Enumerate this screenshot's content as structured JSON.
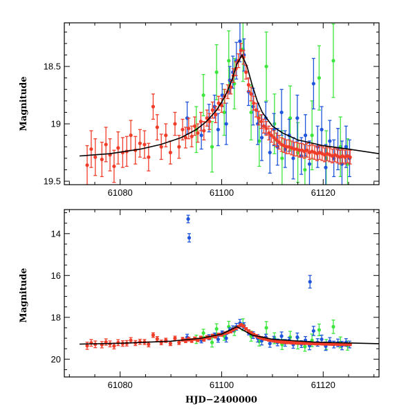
{
  "colors": {
    "red": "#f03c28",
    "blue": "#1e55dc",
    "green": "#3ce63c",
    "curve": "#000000",
    "frame": "#000000"
  },
  "chart_data": [
    {
      "type": "scatter",
      "panel": "top",
      "title": "",
      "xlabel": "",
      "ylabel": "Magnitude",
      "xlim": [
        61069,
        61131
      ],
      "ylim": [
        19.53,
        18.12
      ],
      "y_inverted": true,
      "x_ticks": [
        61080,
        61100,
        61120
      ],
      "y_ticks": [
        18.5,
        19,
        19.5
      ],
      "y_tick_labels": [
        "18.5",
        "19",
        "19.5"
      ],
      "x_tick_labels": [
        "61080",
        "61100",
        "61120"
      ],
      "model_curve": {
        "name": "model fit",
        "x": [
          61072,
          61078,
          61084,
          61088,
          61092,
          61095,
          61097,
          61099,
          61100,
          61101,
          61102,
          61103,
          61104,
          61105,
          61106,
          61107,
          61108,
          61110,
          61112,
          61115,
          61120,
          61125,
          61131
        ],
        "y": [
          19.28,
          19.26,
          19.22,
          19.18,
          19.12,
          19.05,
          18.98,
          18.88,
          18.81,
          18.73,
          18.62,
          18.48,
          18.4,
          18.5,
          18.66,
          18.8,
          18.9,
          19.02,
          19.08,
          19.14,
          19.19,
          19.22,
          19.26
        ]
      },
      "series": [
        {
          "name": "red",
          "x": [
            61073.5,
            61074.3,
            61075.1,
            61076.4,
            61077.2,
            61078.0,
            61078.8,
            61079.6,
            61080.5,
            61081.3,
            61082.1,
            61083.0,
            61083.9,
            61084.8,
            61085.6,
            61086.5,
            61087.3,
            61088.1,
            61089.0,
            61089.9,
            61090.8,
            61091.6,
            61092.3,
            61092.9,
            61093.5,
            61094.1,
            61094.7,
            61095.3,
            61095.9,
            61096.5,
            61097.1,
            61097.6,
            61098.2,
            61098.8,
            61099.4,
            61100.0,
            61100.6,
            61101.2,
            61101.8,
            61102.3,
            61102.8,
            61103.3,
            61103.8,
            61104.3,
            61104.8,
            61105.3,
            61105.8,
            61106.3,
            61106.8,
            61107.3,
            61107.8,
            61108.3,
            61108.8,
            61109.3,
            61109.8,
            61110.3,
            61110.8,
            61111.3,
            61111.8,
            61112.3,
            61112.8,
            61113.3,
            61113.8,
            61114.3,
            61114.8,
            61115.3,
            61115.8,
            61116.3,
            61116.8,
            61117.3,
            61117.8,
            61118.3,
            61118.8,
            61119.3,
            61119.8,
            61120.3,
            61120.8,
            61121.3,
            61121.8,
            61122.3,
            61122.8,
            61123.3,
            61123.8,
            61124.3,
            61124.8,
            61125.3
          ],
          "y": [
            19.36,
            19.22,
            19.29,
            19.31,
            19.18,
            19.27,
            19.37,
            19.21,
            19.25,
            19.24,
            19.1,
            19.23,
            19.17,
            19.18,
            19.29,
            18.85,
            19.03,
            19.2,
            19.1,
            19.25,
            19.0,
            19.2,
            19.05,
            19.12,
            19.04,
            19.11,
            19.02,
            19.08,
            18.98,
            19.06,
            18.95,
            18.98,
            18.88,
            18.92,
            18.82,
            18.84,
            18.76,
            18.72,
            18.68,
            18.58,
            18.52,
            18.45,
            18.36,
            18.42,
            18.55,
            18.66,
            18.74,
            18.82,
            18.88,
            18.95,
            18.98,
            19.02,
            19.04,
            19.08,
            19.1,
            19.12,
            19.14,
            19.16,
            19.18,
            19.19,
            19.2,
            19.2,
            19.21,
            19.22,
            19.22,
            19.23,
            19.23,
            19.24,
            19.23,
            19.25,
            19.24,
            19.25,
            19.26,
            19.25,
            19.26,
            19.27,
            19.26,
            19.27,
            19.28,
            19.27,
            19.28,
            19.29,
            19.28,
            19.29,
            19.28,
            19.29
          ],
          "err": [
            0.17,
            0.16,
            0.16,
            0.15,
            0.15,
            0.14,
            0.14,
            0.14,
            0.13,
            0.13,
            0.13,
            0.12,
            0.12,
            0.12,
            0.12,
            0.11,
            0.11,
            0.11,
            0.1,
            0.1,
            0.1,
            0.1,
            0.09,
            0.09,
            0.09,
            0.09,
            0.08,
            0.08,
            0.08,
            0.08,
            0.07,
            0.07,
            0.07,
            0.07,
            0.06,
            0.06,
            0.06,
            0.06,
            0.06,
            0.06,
            0.06,
            0.06,
            0.06,
            0.06,
            0.06,
            0.06,
            0.06,
            0.06,
            0.06,
            0.06,
            0.06,
            0.06,
            0.06,
            0.06,
            0.06,
            0.06,
            0.06,
            0.06,
            0.06,
            0.06,
            0.06,
            0.06,
            0.06,
            0.06,
            0.06,
            0.06,
            0.06,
            0.06,
            0.06,
            0.06,
            0.06,
            0.06,
            0.06,
            0.06,
            0.06,
            0.06,
            0.06,
            0.06,
            0.06,
            0.06,
            0.06,
            0.06,
            0.06,
            0.06,
            0.06,
            0.06
          ]
        },
        {
          "name": "blue",
          "x": [
            61093.2,
            61096.0,
            61097.5,
            61098.6,
            61099.3,
            61100.1,
            61100.9,
            61101.6,
            61102.2,
            61102.9,
            61103.6,
            61104.4,
            61105.3,
            61106.2,
            61107.1,
            61107.9,
            61108.7,
            61109.5,
            61110.3,
            61111.0,
            61111.8,
            61112.5,
            61113.3,
            61114.1,
            61114.9,
            61115.7,
            61116.5,
            61117.3,
            61118.1,
            61118.9,
            61119.7,
            61120.5,
            61121.3,
            61122.1,
            61122.9,
            61123.7,
            61124.5,
            61125.2
          ],
          "y": [
            18.95,
            19.1,
            18.95,
            18.85,
            19.05,
            18.75,
            19.0,
            18.62,
            18.55,
            18.45,
            18.28,
            18.4,
            18.72,
            18.85,
            19.0,
            19.12,
            18.95,
            19.25,
            19.05,
            19.2,
            18.9,
            19.22,
            19.1,
            19.3,
            18.95,
            19.28,
            19.1,
            19.35,
            18.65,
            19.2,
            19.05,
            19.38,
            19.15,
            19.3,
            19.22,
            19.35,
            19.2,
            19.3
          ],
          "err": [
            0.14,
            0.12,
            0.12,
            0.1,
            0.14,
            0.1,
            0.18,
            0.12,
            0.14,
            0.16,
            0.18,
            0.14,
            0.12,
            0.16,
            0.18,
            0.2,
            0.14,
            0.18,
            0.14,
            0.16,
            0.2,
            0.16,
            0.14,
            0.18,
            0.2,
            0.16,
            0.18,
            0.2,
            0.22,
            0.18,
            0.2,
            0.2,
            0.18,
            0.16,
            0.18,
            0.2,
            0.18,
            0.16
          ]
        },
        {
          "name": "green",
          "x": [
            61095.0,
            61096.4,
            61098.1,
            61099.0,
            61100.5,
            61101.4,
            61102.5,
            61104.2,
            61105.8,
            61107.4,
            61108.8,
            61110.4,
            61111.9,
            61113.5,
            61115.0,
            61116.4,
            61117.8,
            61119.2,
            61120.6,
            61122.0,
            61123.4,
            61124.8
          ],
          "y": [
            19.05,
            18.75,
            19.2,
            18.55,
            18.9,
            18.45,
            18.65,
            18.35,
            18.9,
            19.15,
            18.5,
            19.0,
            19.3,
            18.95,
            19.25,
            19.4,
            19.1,
            18.6,
            19.3,
            18.45,
            19.2,
            19.35
          ],
          "err": [
            0.2,
            0.18,
            0.22,
            0.24,
            0.2,
            0.26,
            0.22,
            0.28,
            0.24,
            0.22,
            0.3,
            0.26,
            0.24,
            0.28,
            0.26,
            0.22,
            0.3,
            0.28,
            0.24,
            0.32,
            0.26,
            0.22
          ]
        }
      ]
    },
    {
      "type": "scatter",
      "panel": "bottom",
      "title": "",
      "xlabel": "HJD−2400000",
      "ylabel": "Magnitude",
      "xlim": [
        61069,
        61131
      ],
      "ylim": [
        20.85,
        12.85
      ],
      "y_inverted": true,
      "x_ticks": [
        61080,
        61100,
        61120
      ],
      "y_ticks": [
        14,
        16,
        18,
        20
      ],
      "y_tick_labels": [
        "14",
        "16",
        "18",
        "20"
      ],
      "x_tick_labels": [
        "61080",
        "61100",
        "61120"
      ],
      "model_curve": {
        "name": "model fit",
        "x": [
          61072,
          61080,
          61090,
          61096,
          61100,
          61103,
          61106,
          61110,
          61118,
          61131
        ],
        "y": [
          19.28,
          19.24,
          19.14,
          19.0,
          18.8,
          18.45,
          18.85,
          19.05,
          19.18,
          19.26
        ]
      },
      "outliers": {
        "name": "blue",
        "x": [
          61093.4,
          61093.6,
          61117.4
        ],
        "y": [
          13.3,
          14.2,
          16.3
        ],
        "err": [
          0.18,
          0.2,
          0.3
        ]
      }
    }
  ]
}
